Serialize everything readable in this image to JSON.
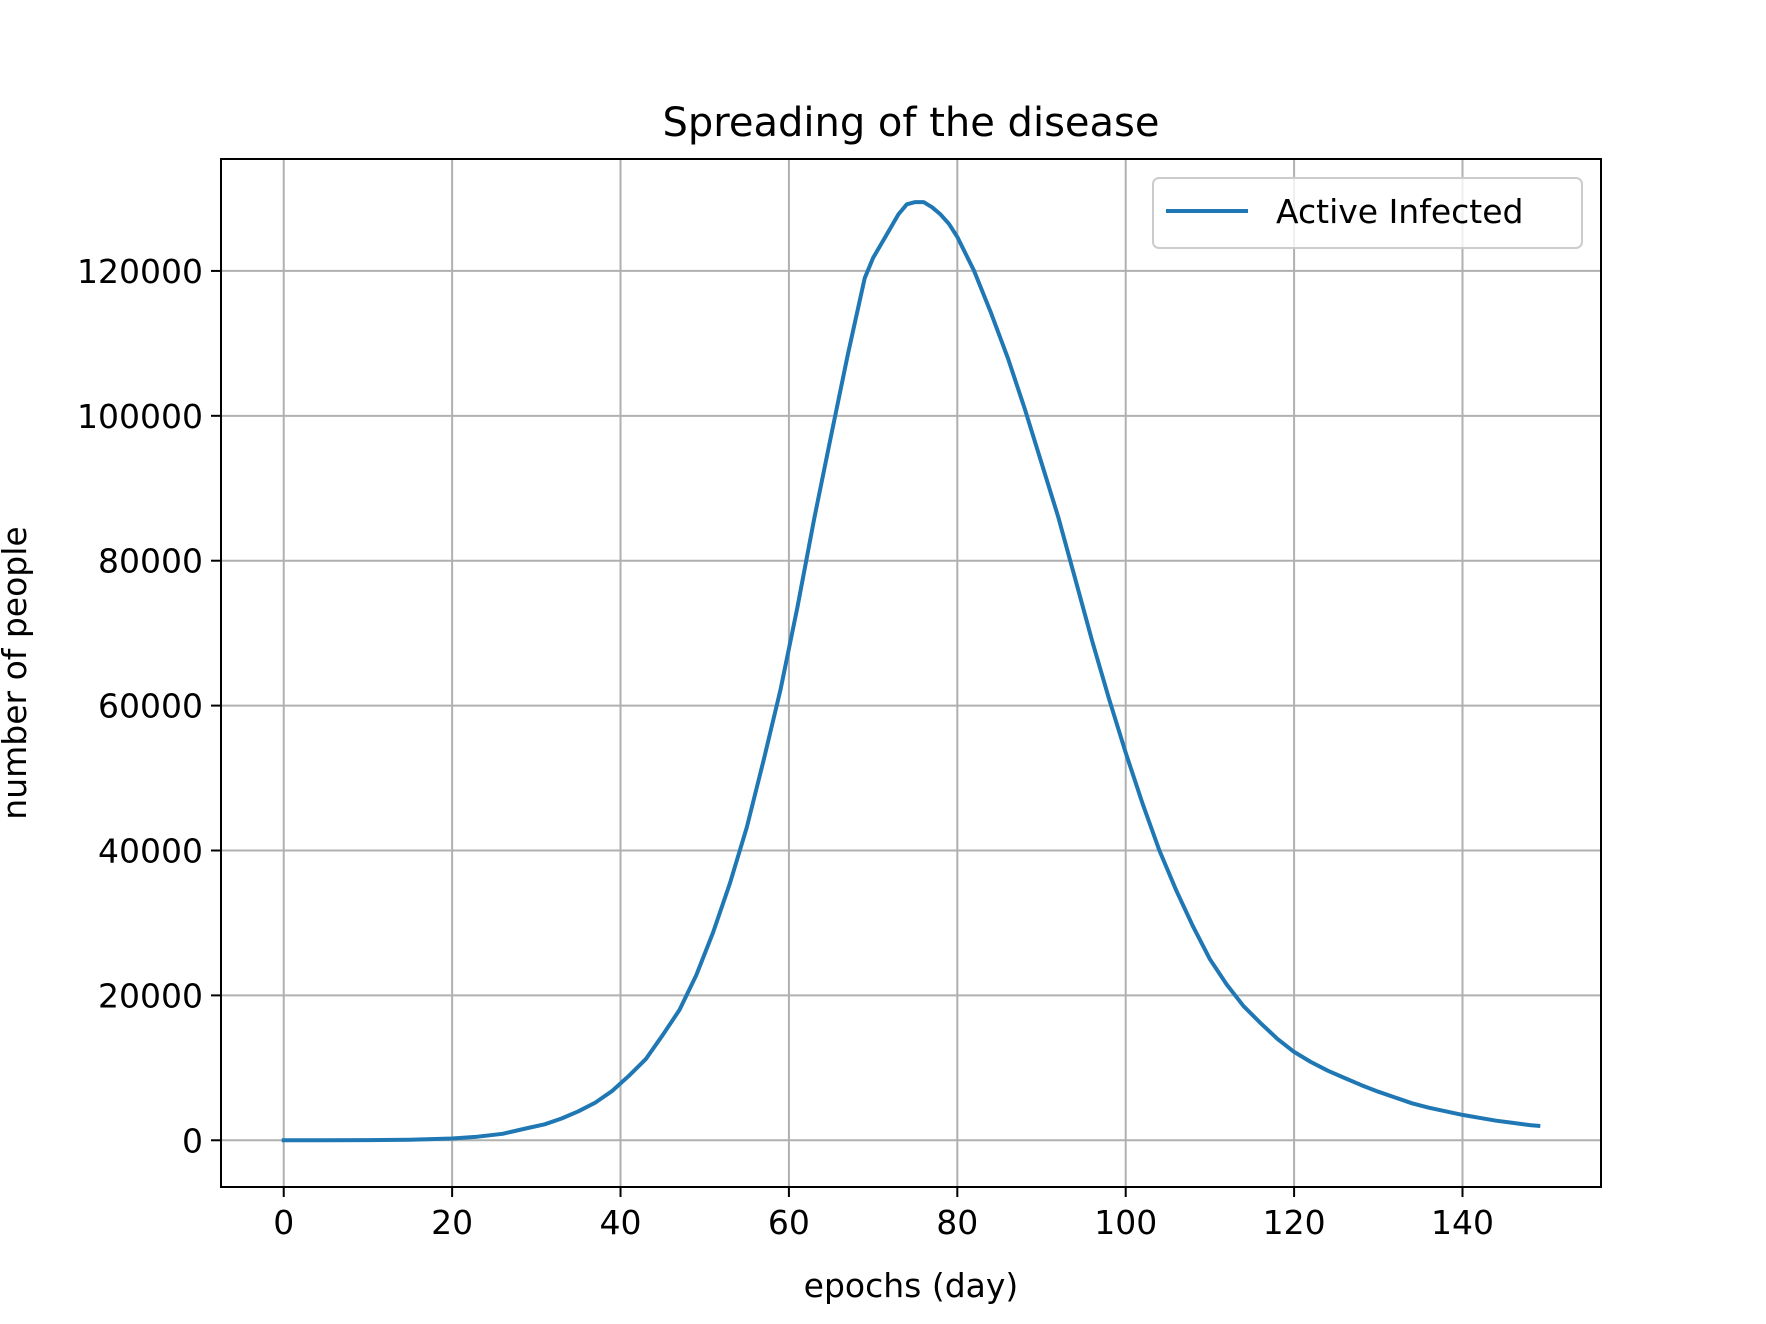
{
  "chart_data": {
    "type": "line",
    "title": "Spreading of the disease",
    "xlabel": "epochs (day)",
    "ylabel": "number of people",
    "xlim": [
      -7.45,
      156.45
    ],
    "ylim": [
      -6450,
      135450
    ],
    "xticks": [
      0,
      20,
      40,
      60,
      80,
      100,
      120,
      140
    ],
    "yticks": [
      0,
      20000,
      40000,
      60000,
      80000,
      100000,
      120000
    ],
    "grid": true,
    "legend_position": "top-right",
    "series": [
      {
        "name": "Active Infected",
        "color": "#1f77b4",
        "x": [
          0,
          5,
          10,
          15,
          20,
          23,
          26,
          29,
          31,
          33,
          35,
          37,
          39,
          41,
          43,
          45,
          47,
          49,
          51,
          53,
          55,
          57,
          59,
          61,
          63,
          65,
          67,
          69,
          70,
          72,
          73,
          74,
          75,
          76,
          77,
          78,
          79,
          80,
          82,
          84,
          86,
          88,
          90,
          92,
          94,
          96,
          98,
          100,
          102,
          104,
          106,
          108,
          110,
          112,
          114,
          116,
          118,
          120,
          122,
          124,
          126,
          128,
          130,
          132,
          134,
          136,
          138,
          140,
          142,
          144,
          146,
          148,
          149
        ],
        "y": [
          0,
          0,
          20,
          80,
          250,
          500,
          900,
          1700,
          2200,
          3000,
          4000,
          5200,
          6800,
          8900,
          11200,
          14500,
          18000,
          22800,
          28700,
          35500,
          43200,
          52500,
          62200,
          73500,
          85800,
          97200,
          108500,
          119000,
          121800,
          125800,
          127800,
          129200,
          129500,
          129500,
          128800,
          127800,
          126500,
          124700,
          120000,
          114200,
          108000,
          101000,
          93500,
          86000,
          77500,
          69000,
          61000,
          53500,
          46500,
          40000,
          34500,
          29500,
          25000,
          21500,
          18500,
          16200,
          14000,
          12200,
          10800,
          9600,
          8600,
          7600,
          6700,
          5900,
          5100,
          4500,
          4000,
          3500,
          3100,
          2700,
          2400,
          2100,
          2000
        ]
      }
    ]
  }
}
